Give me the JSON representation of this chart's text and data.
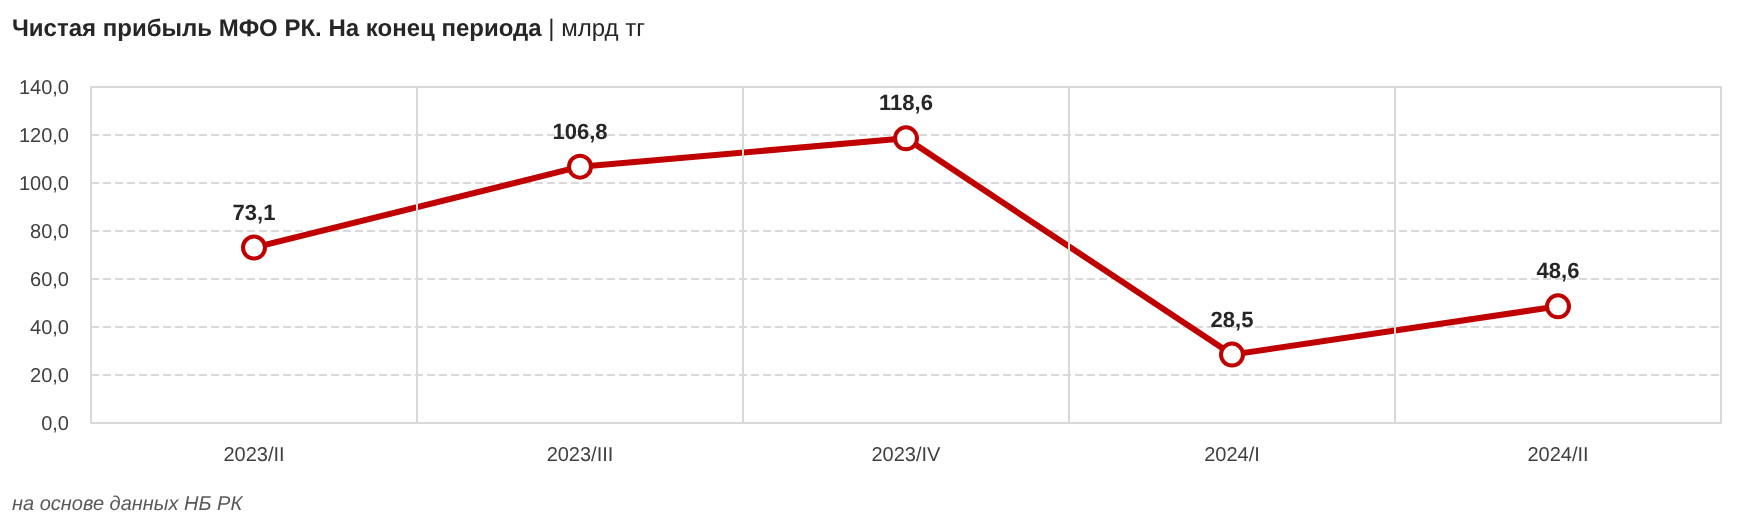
{
  "chart_data": {
    "type": "line",
    "title": "Чистая прибыль МФО РК. На конец периода",
    "subtitle": "| млрд тг",
    "categories": [
      "2023/II",
      "2023/III",
      "2023/IV",
      "2024/I",
      "2024/II"
    ],
    "series": [
      {
        "color": "#c00000",
        "values": [
          73.1,
          106.8,
          118.6,
          28.5,
          48.6
        ],
        "value_labels": [
          "73,1",
          "106,8",
          "118,6",
          "28,5",
          "48,6"
        ]
      }
    ],
    "ylim": [
      0,
      140
    ],
    "yticks": [
      {
        "value": 0,
        "label": "0,0"
      },
      {
        "value": 20,
        "label": "20,0"
      },
      {
        "value": 40,
        "label": "40,0"
      },
      {
        "value": 60,
        "label": "60,0"
      },
      {
        "value": 80,
        "label": "80,0"
      },
      {
        "value": 100,
        "label": "100,0"
      },
      {
        "value": 120,
        "label": "120,0"
      },
      {
        "value": 140,
        "label": "140,0"
      }
    ],
    "grid": true,
    "marker": "circle",
    "line_style": "solid",
    "annotations": [
      "на основе данных НБ РК"
    ]
  }
}
